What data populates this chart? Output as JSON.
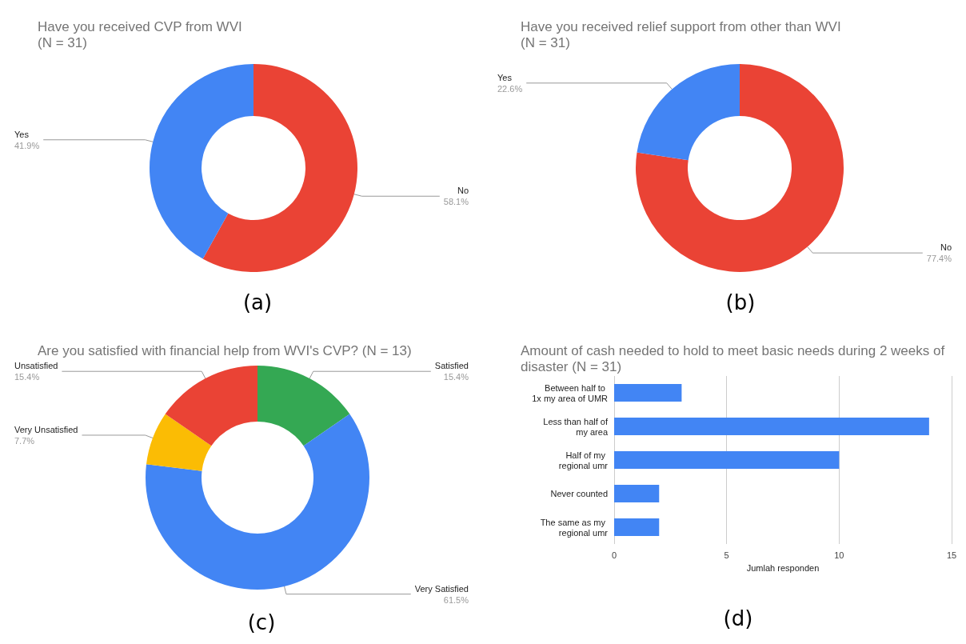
{
  "chart_data": [
    {
      "type": "donut",
      "title": "Have you received CVP from WVI\n(N = 31)",
      "categories": [
        "No",
        "Yes"
      ],
      "values": [
        58.1,
        41.9
      ],
      "colors": [
        "#ea4335",
        "#4285f4"
      ],
      "value_labels": [
        "58.1%",
        "41.9%"
      ],
      "legend": false,
      "annotations": [
        "(a)"
      ]
    },
    {
      "type": "donut",
      "title": "Have you received relief support from other than WVI\n(N = 31)",
      "categories": [
        "No",
        "Yes"
      ],
      "values": [
        77.4,
        22.6
      ],
      "colors": [
        "#ea4335",
        "#4285f4"
      ],
      "value_labels": [
        "77.4%",
        "22.6%"
      ],
      "legend": false,
      "annotations": [
        "(b)"
      ]
    },
    {
      "type": "donut",
      "title": "Are you satisfied with financial help from WVI's CVP? (N = 13)",
      "categories": [
        "Satisfied",
        "Very Satisfied",
        "Very Unsatisfied",
        "Unsatisfied"
      ],
      "values": [
        15.4,
        61.5,
        7.7,
        15.4
      ],
      "colors": [
        "#34a853",
        "#4285f4",
        "#fbbc04",
        "#ea4335"
      ],
      "value_labels": [
        "15.4%",
        "61.5%",
        "7.7%",
        "15.4%"
      ],
      "legend": false,
      "annotations": [
        "(c)"
      ]
    },
    {
      "type": "bar",
      "orientation": "horizontal",
      "title": "Amount of cash needed to hold to meet basic needs during 2 weeks of disaster (N = 31)",
      "categories": [
        "Between half to 1x my area of UMR",
        "Less than half of my area",
        "Half of my regional umr",
        "Never counted",
        "The same as my regional umr"
      ],
      "values": [
        3,
        14,
        10,
        2,
        2
      ],
      "color": "#4285f4",
      "xlim": [
        0,
        15
      ],
      "xticks": [
        0,
        5,
        10,
        15
      ],
      "xlabel": "Jumlah responden",
      "grid": "x",
      "legend": false,
      "annotations": [
        "(d)"
      ]
    }
  ]
}
